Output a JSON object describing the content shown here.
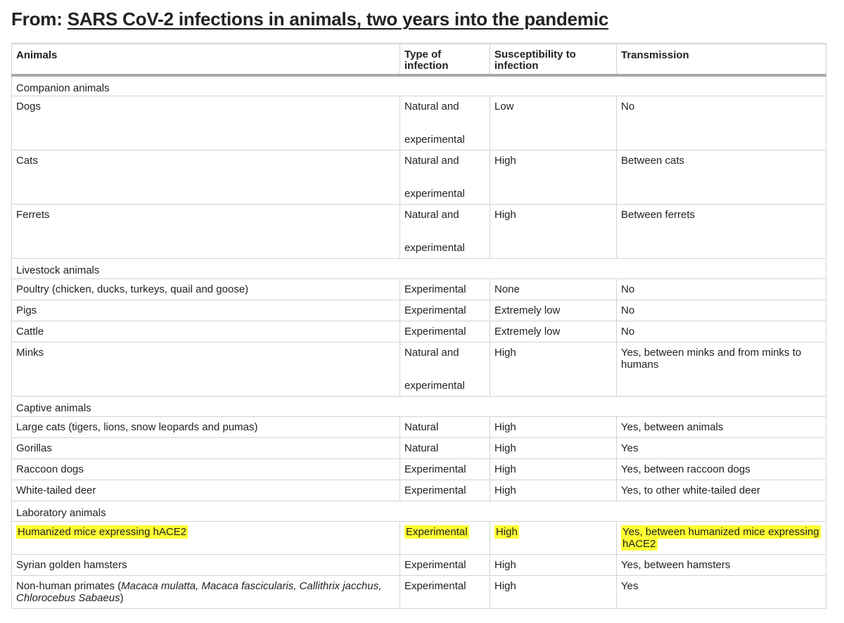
{
  "header": {
    "prefix": "From:",
    "title": "SARS CoV-2 infections in animals, two years into the pandemic"
  },
  "columns": {
    "animals": "Animals",
    "type_line1": "Type of",
    "type_line2": "infection",
    "susc_line1": "Susceptibility to",
    "susc_line2": "infection",
    "transmission": "Transmission"
  },
  "groups": {
    "companion": "Companion animals",
    "livestock": "Livestock animals",
    "captive": "Captive animals",
    "laboratory": "Laboratory animals"
  },
  "rows": {
    "dogs": {
      "animal": "Dogs",
      "type1": "Natural and",
      "type2": "experimental",
      "susceptibility": "Low",
      "transmission": "No"
    },
    "cats": {
      "animal": "Cats",
      "type1": "Natural and",
      "type2": "experimental",
      "susceptibility": "High",
      "transmission": "Between cats"
    },
    "ferrets": {
      "animal": "Ferrets",
      "type1": "Natural and",
      "type2": "experimental",
      "susceptibility": "High",
      "transmission": "Between ferrets"
    },
    "poultry": {
      "animal": "Poultry (chicken, ducks, turkeys, quail and goose)",
      "type": "Experimental",
      "susceptibility": "None",
      "transmission": "No"
    },
    "pigs": {
      "animal": "Pigs",
      "type": "Experimental",
      "susceptibility": "Extremely low",
      "transmission": "No"
    },
    "cattle": {
      "animal": "Cattle",
      "type": "Experimental",
      "susceptibility": "Extremely low",
      "transmission": "No"
    },
    "minks": {
      "animal": "Minks",
      "type1": "Natural and",
      "type2": "experimental",
      "susceptibility": "High",
      "transmission": "Yes, between minks and from minks to humans"
    },
    "large_cats": {
      "animal": "Large cats (tigers, lions, snow leopards and pumas)",
      "type": "Natural",
      "susceptibility": "High",
      "transmission": "Yes, between animals"
    },
    "gorillas": {
      "animal": "Gorillas",
      "type": "Natural",
      "susceptibility": "High",
      "transmission": "Yes"
    },
    "raccoon_dogs": {
      "animal": "Raccoon dogs",
      "type": "Experimental",
      "susceptibility": "High",
      "transmission": "Yes, between raccoon dogs"
    },
    "deer": {
      "animal": "White-tailed deer",
      "type": "Experimental",
      "susceptibility": "High",
      "transmission": "Yes, to other white-tailed deer"
    },
    "mice": {
      "animal": "Humanized mice expressing hACE2",
      "type": "Experimental",
      "susceptibility": "High",
      "transmission": "Yes, between humanized mice expressing hACE2"
    },
    "hamsters": {
      "animal": "Syrian golden hamsters",
      "type": "Experimental",
      "susceptibility": "High",
      "transmission": "Yes, between hamsters"
    },
    "primates": {
      "animal_prefix": "Non-human primates (",
      "animal_species": "Macaca mulatta, Macaca fascicularis, Callithrix jacchus, Chlorocebus Sabaeus",
      "animal_suffix": ")",
      "type": "Experimental",
      "susceptibility": "High",
      "transmission": "Yes"
    }
  },
  "highlight_color": "#ffff33"
}
